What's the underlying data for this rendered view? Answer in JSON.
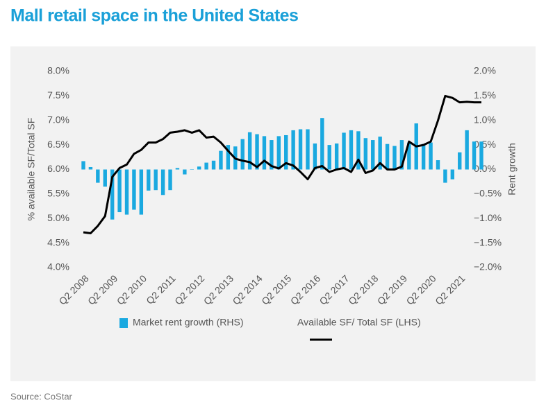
{
  "chart_data": {
    "type": "combo",
    "title": "Mall retail space in the United States",
    "source": "Source: CoStar",
    "ylabel": "% available SF/Total SF",
    "y2label": "Rent growth",
    "categories": [
      "Q2 2008",
      null,
      null,
      null,
      "Q2 2009",
      null,
      null,
      null,
      "Q2 2010",
      null,
      null,
      null,
      "Q2 2011",
      null,
      null,
      null,
      "Q2 2012",
      null,
      null,
      null,
      "Q2 2013",
      null,
      null,
      null,
      "Q2 2014",
      null,
      null,
      null,
      "Q2 2015",
      null,
      null,
      null,
      "Q2 2016",
      null,
      null,
      null,
      "Q2 2017",
      null,
      null,
      null,
      "Q2 2018",
      null,
      null,
      null,
      "Q2 2019",
      null,
      null,
      null,
      "Q2 2020",
      null,
      null,
      null,
      "Q2 2021",
      null,
      null,
      null
    ],
    "series": [
      {
        "name": "Market rent growth (RHS)",
        "type": "bar",
        "axis": "y2",
        "color": "#1aa9e0",
        "values": [
          0.17,
          0.05,
          -0.27,
          -0.35,
          -1.02,
          -0.87,
          -0.92,
          -0.82,
          -0.92,
          -0.43,
          -0.42,
          -0.52,
          -0.42,
          0.03,
          -0.1,
          0.0,
          0.06,
          0.14,
          0.18,
          0.38,
          0.5,
          0.47,
          0.62,
          0.76,
          0.72,
          0.68,
          0.6,
          0.68,
          0.7,
          0.8,
          0.82,
          0.82,
          0.53,
          1.05,
          0.5,
          0.53,
          0.75,
          0.8,
          0.78,
          0.64,
          0.6,
          0.67,
          0.52,
          0.48,
          0.6,
          0.55,
          0.94,
          0.52,
          0.55,
          0.19,
          -0.27,
          -0.2,
          0.35,
          0.8,
          0.57,
          0.57
        ]
      },
      {
        "name": "Available SF/ Total SF (LHS)",
        "type": "line",
        "color": "#000000",
        "values": [
          4.72,
          4.7,
          4.85,
          5.05,
          5.85,
          6.03,
          6.1,
          6.32,
          6.4,
          6.55,
          6.55,
          6.62,
          6.75,
          6.77,
          6.8,
          6.75,
          6.8,
          6.65,
          6.67,
          6.55,
          6.38,
          6.22,
          6.18,
          6.15,
          6.05,
          6.18,
          6.07,
          6.02,
          6.13,
          6.08,
          5.95,
          5.8,
          6.03,
          6.07,
          5.95,
          6.0,
          6.03,
          5.95,
          6.2,
          5.93,
          5.98,
          6.13,
          6.0,
          6.0,
          6.06,
          6.57,
          6.47,
          6.5,
          6.57,
          7.0,
          7.5,
          7.46,
          7.37,
          7.38,
          7.37,
          7.37
        ]
      }
    ],
    "ylim": [
      4.0,
      8.0
    ],
    "yticks": [
      {
        "value": 4.0,
        "label": "4.0%"
      },
      {
        "value": 4.5,
        "label": "4.5%"
      },
      {
        "value": 5.0,
        "label": "5.0%"
      },
      {
        "value": 5.5,
        "label": "5.5%"
      },
      {
        "value": 6.0,
        "label": "6.0%"
      },
      {
        "value": 6.5,
        "label": "6.5%"
      },
      {
        "value": 7.0,
        "label": "7.0%"
      },
      {
        "value": 7.5,
        "label": "7.5%"
      },
      {
        "value": 8.0,
        "label": "8.0%"
      }
    ],
    "y2lim": [
      -2.0,
      2.0
    ],
    "y2ticks": [
      {
        "value": -2.0,
        "label": "−2.0%"
      },
      {
        "value": -1.5,
        "label": "−1.5%"
      },
      {
        "value": -1.0,
        "label": "−1.0%"
      },
      {
        "value": -0.5,
        "label": "−0.5%"
      },
      {
        "value": 0.0,
        "label": "0.0%"
      },
      {
        "value": 0.5,
        "label": "0.5%"
      },
      {
        "value": 1.0,
        "label": "1.0%"
      },
      {
        "value": 1.5,
        "label": "1.5%"
      },
      {
        "value": 2.0,
        "label": "2.0%"
      }
    ],
    "grid": false
  }
}
